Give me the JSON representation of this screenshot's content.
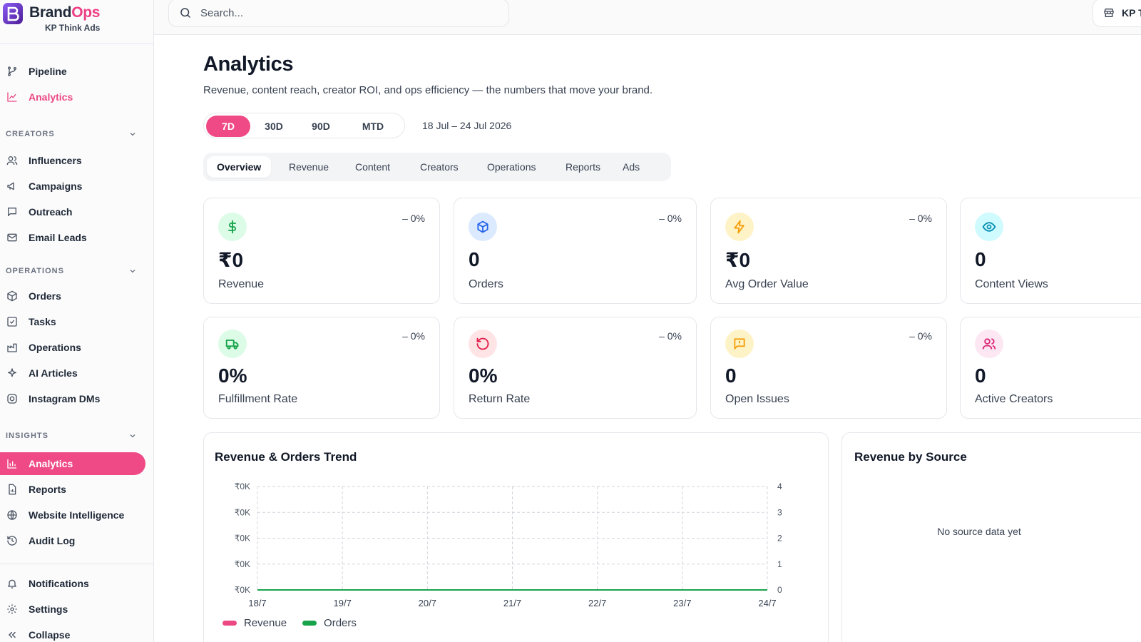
{
  "brand": {
    "name_main": "Brand",
    "name_accent": "Ops",
    "workspace": "KP Think Ads"
  },
  "colors": {
    "accent": "#ef4a86",
    "revenue": "#ec4884",
    "orders": "#16a34a"
  },
  "sidebar": {
    "top_items": [
      {
        "label": "Pipeline",
        "icon": "git-branch-icon"
      },
      {
        "label": "Analytics",
        "icon": "line-chart-icon"
      }
    ],
    "sections": [
      {
        "title": "CREATORS",
        "items": [
          "Influencers",
          "Campaigns",
          "Outreach",
          "Email Leads"
        ]
      },
      {
        "title": "OPERATIONS",
        "items": [
          "Orders",
          "Tasks",
          "Operations",
          "AI Articles",
          "Instagram DMs"
        ]
      },
      {
        "title": "INSIGHTS",
        "items": [
          "Analytics",
          "Reports",
          "Website Intelligence",
          "Audit Log"
        ]
      }
    ],
    "bottom_items": [
      "Notifications",
      "Settings",
      "Collapse"
    ]
  },
  "topbar": {
    "search_placeholder": "Search...",
    "workspace_label": "KP T"
  },
  "page": {
    "title": "Analytics",
    "subtitle": "Revenue, content reach, creator ROI, and ops efficiency — the numbers that move your brand.",
    "ranges": [
      "7D",
      "30D",
      "90D",
      "MTD"
    ],
    "active_range": "7D",
    "date_range": "18 Jul – 24 Jul 2026",
    "tabs": [
      "Overview",
      "Revenue",
      "Content",
      "Creators",
      "Operations",
      "Reports",
      "Ads"
    ],
    "active_tab": "Overview"
  },
  "kpis": [
    {
      "value": "₹0",
      "label": "Revenue",
      "delta": "– 0%",
      "icon": "dollar-icon"
    },
    {
      "value": "0",
      "label": "Orders",
      "delta": "– 0%",
      "icon": "box-icon"
    },
    {
      "value": "₹0",
      "label": "Avg Order Value",
      "delta": "– 0%",
      "icon": "bolt-icon"
    },
    {
      "value": "0",
      "label": "Content Views",
      "delta": "",
      "icon": "eye-icon"
    },
    {
      "value": "0%",
      "label": "Fulfillment Rate",
      "delta": "– 0%",
      "icon": "truck-icon"
    },
    {
      "value": "0%",
      "label": "Return Rate",
      "delta": "– 0%",
      "icon": "return-icon"
    },
    {
      "value": "0",
      "label": "Open Issues",
      "delta": "– 0%",
      "icon": "message-alert-icon"
    },
    {
      "value": "0",
      "label": "Active Creators",
      "delta": "",
      "icon": "users-icon"
    }
  ],
  "trend": {
    "title": "Revenue & Orders Trend",
    "legend": [
      "Revenue",
      "Orders"
    ]
  },
  "chart_data": {
    "type": "line",
    "title": "Revenue & Orders Trend",
    "categories": [
      "18/7",
      "19/7",
      "20/7",
      "21/7",
      "22/7",
      "23/7",
      "24/7"
    ],
    "series": [
      {
        "name": "Revenue",
        "values": [
          0,
          0,
          0,
          0,
          0,
          0,
          0
        ]
      },
      {
        "name": "Orders",
        "values": [
          0,
          0,
          0,
          0,
          0,
          0,
          0
        ]
      }
    ],
    "y_left_ticks": [
      "₹0K",
      "₹0K",
      "₹0K",
      "₹0K",
      "₹0K"
    ],
    "y_right_ticks": [
      "4",
      "3",
      "2",
      "1",
      "0"
    ],
    "y_right_range": [
      0,
      4
    ],
    "grid": true,
    "legend_position": "bottom-left"
  },
  "source": {
    "title": "Revenue by Source",
    "empty": "No source data yet"
  }
}
